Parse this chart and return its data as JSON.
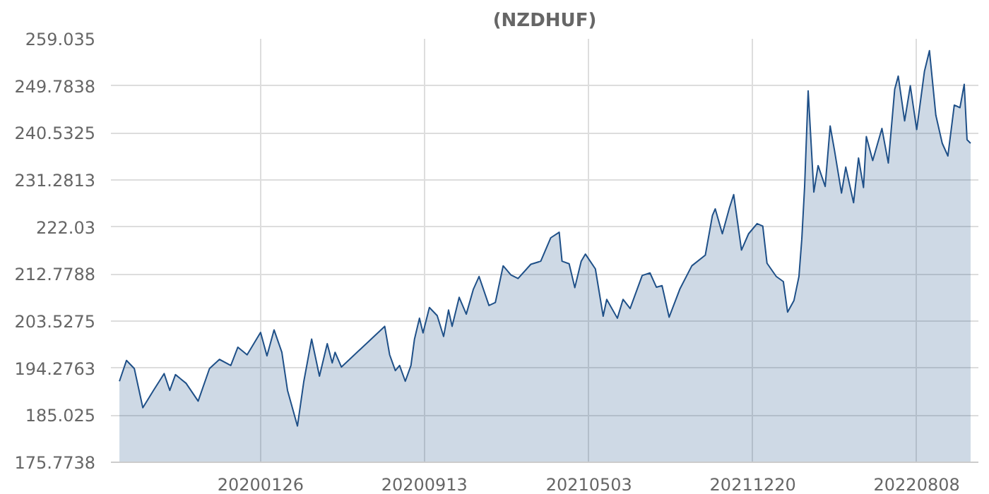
{
  "chart_data": {
    "type": "area",
    "title": "(NZDHUF)",
    "x": [
      "2019-07-11",
      "2019-07-21",
      "2019-08-01",
      "2019-08-13",
      "2019-08-28",
      "2019-09-12",
      "2019-09-20",
      "2019-09-28",
      "2019-10-13",
      "2019-10-30",
      "2019-11-15",
      "2019-11-29",
      "2019-12-15",
      "2019-12-25",
      "2020-01-07",
      "2020-01-26",
      "2020-02-04",
      "2020-02-14",
      "2020-02-25",
      "2020-03-04",
      "2020-03-18",
      "2020-03-27",
      "2020-04-07",
      "2020-04-18",
      "2020-04-29",
      "2020-05-06",
      "2020-05-10",
      "2020-05-19",
      "2020-07-19",
      "2020-07-26",
      "2020-08-03",
      "2020-08-09",
      "2020-08-17",
      "2020-08-25",
      "2020-08-30",
      "2020-09-06",
      "2020-09-11",
      "2020-09-20",
      "2020-10-01",
      "2020-10-10",
      "2020-10-17",
      "2020-10-22",
      "2020-11-01",
      "2020-11-11",
      "2020-11-21",
      "2020-11-29",
      "2020-12-13",
      "2020-12-22",
      "2021-01-02",
      "2021-01-13",
      "2021-01-23",
      "2021-02-10",
      "2021-02-24",
      "2021-03-10",
      "2021-03-22",
      "2021-03-26",
      "2021-04-05",
      "2021-04-13",
      "2021-04-22",
      "2021-04-28",
      "2021-05-12",
      "2021-05-23",
      "2021-05-28",
      "2021-06-12",
      "2021-06-20",
      "2021-06-30",
      "2021-07-17",
      "2021-07-28",
      "2021-08-06",
      "2021-08-14",
      "2021-08-24",
      "2021-09-08",
      "2021-09-25",
      "2021-10-14",
      "2021-10-24",
      "2021-10-28",
      "2021-11-07",
      "2021-11-17",
      "2021-11-23",
      "2021-12-04",
      "2021-12-14",
      "2021-12-26",
      "2022-01-03",
      "2022-01-09",
      "2022-01-22",
      "2022-02-01",
      "2022-02-07",
      "2022-02-16",
      "2022-02-23",
      "2022-02-27",
      "2022-03-03",
      "2022-03-08",
      "2022-03-16",
      "2022-03-22",
      "2022-04-01",
      "2022-04-08",
      "2022-04-14",
      "2022-04-24",
      "2022-04-30",
      "2022-05-11",
      "2022-05-18",
      "2022-05-25",
      "2022-05-29",
      "2022-06-07",
      "2022-06-20",
      "2022-06-29",
      "2022-07-08",
      "2022-07-13",
      "2022-07-22",
      "2022-07-30",
      "2022-08-08",
      "2022-08-19",
      "2022-08-26",
      "2022-09-04",
      "2022-09-13",
      "2022-09-21",
      "2022-09-30",
      "2022-10-08",
      "2022-10-14",
      "2022-10-18",
      "2022-10-23"
    ],
    "series": [
      {
        "color": "#1f5088",
        "values": [
          191.7,
          195.8,
          194.2,
          186.5,
          189.9,
          193.2,
          189.9,
          193.0,
          191.3,
          187.8,
          194.2,
          196.0,
          194.8,
          198.4,
          196.9,
          201.3,
          196.7,
          201.8,
          197.4,
          189.9,
          182.9,
          191.7,
          200.0,
          192.7,
          199.1,
          195.3,
          197.4,
          194.5,
          202.5,
          196.9,
          193.8,
          194.8,
          191.7,
          194.8,
          200.0,
          204.1,
          201.2,
          206.2,
          204.6,
          200.5,
          205.7,
          202.5,
          208.2,
          204.9,
          209.8,
          212.3,
          206.6,
          207.2,
          214.4,
          212.6,
          211.9,
          214.7,
          215.3,
          219.9,
          221.0,
          215.3,
          214.8,
          210.1,
          215.3,
          216.7,
          213.8,
          204.5,
          207.8,
          204.1,
          207.8,
          206.0,
          212.5,
          213.0,
          210.2,
          210.5,
          204.3,
          209.8,
          214.4,
          216.5,
          224.3,
          225.6,
          220.7,
          225.8,
          228.4,
          217.5,
          220.7,
          222.7,
          222.2,
          214.9,
          212.3,
          211.3,
          205.3,
          207.6,
          212.3,
          219.6,
          230.0,
          248.8,
          228.9,
          234.1,
          230.0,
          241.9,
          237.2,
          228.7,
          233.8,
          226.8,
          235.6,
          229.8,
          239.8,
          235.1,
          241.4,
          234.6,
          249.1,
          251.7,
          242.9,
          249.8,
          241.2,
          252.7,
          256.7,
          244.0,
          238.5,
          236.0,
          246.0,
          245.5,
          250.1,
          239.2,
          238.5
        ]
      }
    ],
    "xlim": [
      "2019-06-29",
      "2022-11-03"
    ],
    "xticks": [
      {
        "value": "2020-01-26",
        "label": "20200126"
      },
      {
        "value": "2020-09-13",
        "label": "20200913"
      },
      {
        "value": "2021-05-03",
        "label": "20210503"
      },
      {
        "value": "2021-12-20",
        "label": "20211220"
      },
      {
        "value": "2022-08-08",
        "label": "20220808"
      }
    ],
    "ylim": [
      175.7738,
      259.035
    ],
    "yticks": [
      175.7738,
      185.025,
      194.2763,
      203.5275,
      212.7788,
      222.03,
      231.2813,
      240.5325,
      249.7838,
      259.035
    ],
    "grid": true
  }
}
